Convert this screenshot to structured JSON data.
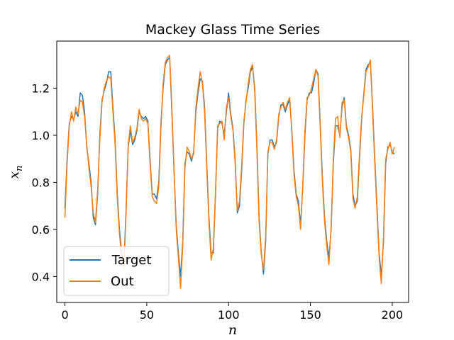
{
  "chart_data": {
    "type": "line",
    "title": "Mackey Glass Time Series",
    "xlabel": "n",
    "ylabel": "x",
    "ylabel_subscript": "n",
    "xlim": [
      -5,
      210
    ],
    "ylim": [
      0.29,
      1.4
    ],
    "xticks": [
      0,
      50,
      100,
      150,
      200
    ],
    "yticks": [
      0.4,
      0.6,
      0.8,
      1.0,
      1.2
    ],
    "xtick_labels": [
      "0",
      "50",
      "100",
      "150",
      "200"
    ],
    "ytick_labels": [
      "0.4",
      "0.6",
      "0.8",
      "1.0",
      "1.2"
    ],
    "legend_position": "bottom-left",
    "grid": false,
    "x_start": 0,
    "series": [
      {
        "name": " Target",
        "color": "#1f77b4",
        "values": [
          0.69,
          0.9,
          1.05,
          1.08,
          1.07,
          1.1,
          1.08,
          1.18,
          1.17,
          1.1,
          0.95,
          0.88,
          0.8,
          0.65,
          0.62,
          0.75,
          1.0,
          1.15,
          1.19,
          1.22,
          1.27,
          1.27,
          1.12,
          0.98,
          0.75,
          0.6,
          0.5,
          0.45,
          0.68,
          0.95,
          1.02,
          0.96,
          0.98,
          1.02,
          1.1,
          1.08,
          1.07,
          1.08,
          1.06,
          0.9,
          0.75,
          0.75,
          0.73,
          0.8,
          1.05,
          1.2,
          1.3,
          1.32,
          1.33,
          1.1,
          0.85,
          0.62,
          0.5,
          0.4,
          0.55,
          0.88,
          0.93,
          0.92,
          0.89,
          0.93,
          1.1,
          1.18,
          1.24,
          1.23,
          1.12,
          0.88,
          0.65,
          0.5,
          0.5,
          0.75,
          1.03,
          1.06,
          1.05,
          1.0,
          1.1,
          1.18,
          1.09,
          1.03,
          0.9,
          0.67,
          0.7,
          0.85,
          1.05,
          1.15,
          1.2,
          1.27,
          1.29,
          1.2,
          0.95,
          0.65,
          0.5,
          0.41,
          0.55,
          0.92,
          0.98,
          0.98,
          0.95,
          0.97,
          1.08,
          1.13,
          1.13,
          1.1,
          1.13,
          1.15,
          1.02,
          0.85,
          0.75,
          0.72,
          0.62,
          0.78,
          1.0,
          1.15,
          1.18,
          1.18,
          1.22,
          1.28,
          1.26,
          1.05,
          0.82,
          0.65,
          0.55,
          0.48,
          0.6,
          0.88,
          1.04,
          1.04,
          1.0,
          1.12,
          1.16,
          1.04,
          1.0,
          0.94,
          0.75,
          0.7,
          0.72,
          0.9,
          1.07,
          1.18,
          1.28,
          1.3,
          1.31,
          1.12,
          0.9,
          0.7,
          0.5,
          0.4,
          0.55,
          0.88,
          0.95,
          0.96,
          0.93,
          0.92
        ],
        "step": 1.3333
      },
      {
        "name": "Out",
        "color": "#ff7f0e",
        "values": [
          0.65,
          0.88,
          1.04,
          1.1,
          1.06,
          1.12,
          1.09,
          1.15,
          1.14,
          1.08,
          0.96,
          0.86,
          0.78,
          0.67,
          0.63,
          0.77,
          0.98,
          1.14,
          1.2,
          1.23,
          1.25,
          1.24,
          1.1,
          0.96,
          0.73,
          0.58,
          0.48,
          0.44,
          0.66,
          0.96,
          1.04,
          0.97,
          0.99,
          1.03,
          1.11,
          1.07,
          1.06,
          1.07,
          1.05,
          0.88,
          0.74,
          0.72,
          0.71,
          0.78,
          1.03,
          1.22,
          1.31,
          1.33,
          1.34,
          1.12,
          0.86,
          0.6,
          0.48,
          0.35,
          0.53,
          0.86,
          0.95,
          0.93,
          0.9,
          0.92,
          1.12,
          1.2,
          1.27,
          1.22,
          1.1,
          0.86,
          0.63,
          0.47,
          0.52,
          0.76,
          1.04,
          1.05,
          1.06,
          0.98,
          1.12,
          1.16,
          1.08,
          1.02,
          0.88,
          0.68,
          0.72,
          0.87,
          1.06,
          1.14,
          1.22,
          1.28,
          1.3,
          1.18,
          0.93,
          0.63,
          0.49,
          0.43,
          0.57,
          0.93,
          0.97,
          0.97,
          0.94,
          0.98,
          1.09,
          1.12,
          1.14,
          1.11,
          1.14,
          1.16,
          1.01,
          0.83,
          0.74,
          0.7,
          0.6,
          0.79,
          1.02,
          1.16,
          1.17,
          1.2,
          1.24,
          1.28,
          1.25,
          1.03,
          0.8,
          0.63,
          0.53,
          0.45,
          0.61,
          0.9,
          1.07,
          1.08,
          0.99,
          1.14,
          1.15,
          1.03,
          0.99,
          0.93,
          0.73,
          0.69,
          0.74,
          0.92,
          1.08,
          1.17,
          1.27,
          1.29,
          1.32,
          1.1,
          0.88,
          0.68,
          0.48,
          0.37,
          0.57,
          0.9,
          0.94,
          0.97,
          0.92,
          0.95
        ],
        "step": 1.3333
      }
    ]
  }
}
